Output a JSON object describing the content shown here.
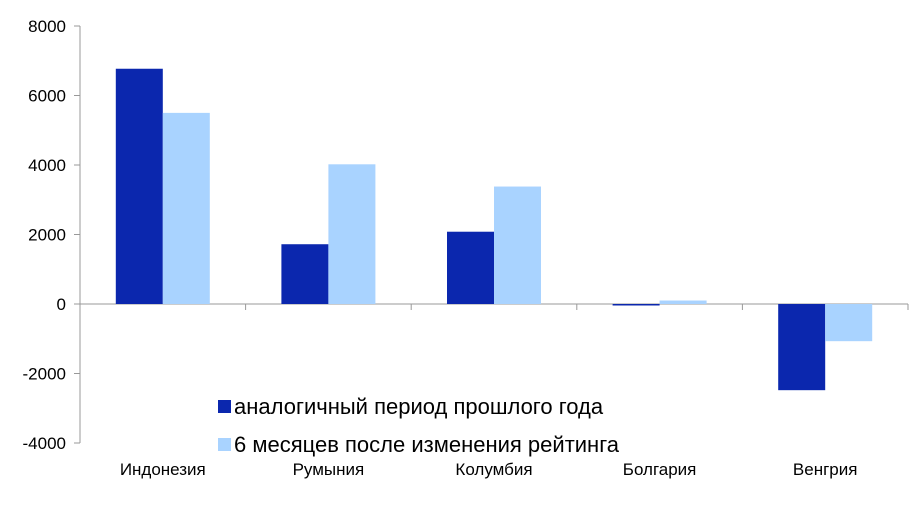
{
  "chart_data": {
    "type": "bar",
    "title": "",
    "xlabel": "",
    "ylabel": "",
    "categories": [
      "Индонезия",
      "Румыния",
      "Колумбия",
      "Болгария",
      "Венгрия"
    ],
    "series": [
      {
        "name": "аналогичный период прошлого года",
        "color": "#0b27ae",
        "values": [
          6770,
          1720,
          2080,
          -30,
          -2480
        ]
      },
      {
        "name": "6 месяцев после изменения рейтинга",
        "color": "#a9d3ff",
        "values": [
          5500,
          4020,
          3380,
          100,
          -1070
        ]
      }
    ],
    "ylim": [
      -4000,
      8000
    ],
    "yticks": [
      8000,
      6000,
      4000,
      2000,
      0,
      -2000,
      -4000
    ],
    "grid": false,
    "legend_position": "bottom-center-inside"
  }
}
